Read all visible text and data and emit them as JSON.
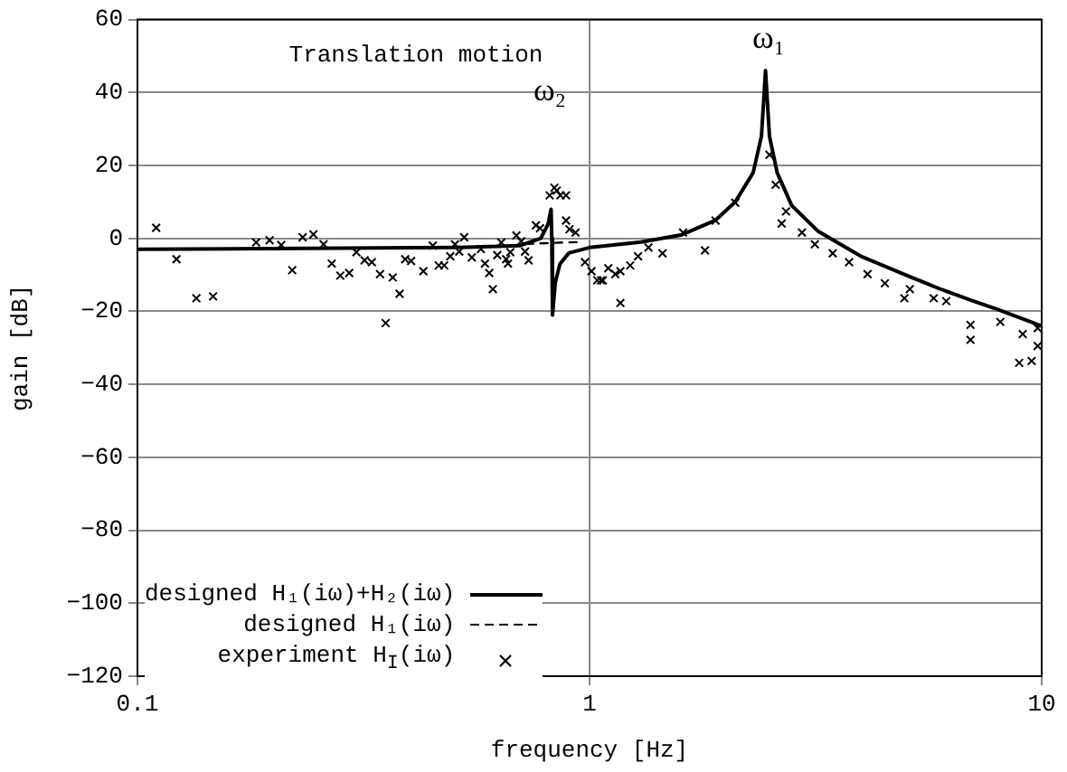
{
  "chart_data": {
    "type": "line",
    "xlabel": "frequency [Hz]",
    "ylabel": "gain [dB]",
    "log": "x",
    "xlim": [
      0.1,
      10
    ],
    "xticks": [
      0.1,
      1,
      10
    ],
    "ylim": [
      -120,
      60
    ],
    "yticks": [
      -120,
      -100,
      -80,
      -60,
      -40,
      -20,
      0,
      20,
      40,
      60
    ],
    "grid": true,
    "legend": "bottom left",
    "annotations": [
      "Translation motion",
      "ω₁",
      "ω₂"
    ],
    "series": [
      {
        "name": "designed H₁(iω)+H₂(iω)",
        "line_style": "solid",
        "marker": "none",
        "color": "#000000",
        "x": [
          0.1,
          0.5,
          0.7,
          0.78,
          0.81,
          0.822,
          0.825,
          0.828,
          0.84,
          0.86,
          0.9,
          1.0,
          1.3,
          1.6,
          1.9,
          2.1,
          2.3,
          2.4,
          2.45,
          2.5,
          2.6,
          2.8,
          3.2,
          4,
          5,
          6,
          7,
          8,
          10
        ],
        "values": [
          -3,
          -2.5,
          -2,
          0,
          4,
          8,
          0,
          -21,
          -12,
          -7,
          -4,
          -2.5,
          -1,
          1,
          5,
          10,
          18,
          28,
          46,
          28,
          18,
          9,
          2,
          -5,
          -10,
          -14,
          -17,
          -19.5,
          -24
        ]
      },
      {
        "name": "designed H₁(iω)",
        "line_style": "dashed",
        "marker": "none",
        "color": "#000000",
        "x": [
          0.72,
          0.8,
          0.88,
          0.96
        ],
        "values": [
          -1.5,
          -1.3,
          -1.1,
          -1
        ]
      },
      {
        "name": "experiment H$_{I}$(iω)",
        "type": "scatter",
        "marker": "cross",
        "color": "#000000",
        "x": [
          0.11,
          0.122,
          0.135,
          0.147,
          0.183,
          0.196,
          0.208,
          0.22,
          0.232,
          0.245,
          0.258,
          0.269,
          0.281,
          0.294,
          0.305,
          0.318,
          0.33,
          0.344,
          0.354,
          0.367,
          0.38,
          0.391,
          0.403,
          0.429,
          0.45,
          0.464,
          0.477,
          0.492,
          0.504,
          0.515,
          0.528,
          0.549,
          0.575,
          0.587,
          0.6,
          0.611,
          0.625,
          0.638,
          0.654,
          0.66,
          0.668,
          0.689,
          0.706,
          0.72,
          0.733,
          0.761,
          0.777,
          0.816,
          0.836,
          0.846,
          0.862,
          0.887,
          0.887,
          0.903,
          0.931,
          0.977,
          1.01,
          1.04,
          1.06,
          1.07,
          1.1,
          1.14,
          1.17,
          1.17,
          1.23,
          1.28,
          1.35,
          1.45,
          1.61,
          1.8,
          1.9,
          2.1,
          2.5,
          2.58,
          2.66,
          2.72,
          2.95,
          3.15,
          3.45,
          3.75,
          4.12,
          4.5,
          4.97,
          5.11,
          5.77,
          6.15,
          6.96,
          6.96,
          8.1,
          8.92,
          9.08,
          9.5,
          9.8,
          9.8
        ],
        "values": [
          2.9,
          -5.7,
          -16.4,
          -15.9,
          -1.1,
          -0.5,
          -1.8,
          -8.7,
          0.3,
          1.1,
          -1.6,
          -6.9,
          -10.2,
          -9.5,
          -3.8,
          -6,
          -6.5,
          -9.8,
          -23.2,
          -10.7,
          -15.2,
          -5.7,
          -6.2,
          -9,
          -2,
          -7.4,
          -7.4,
          -4.9,
          -1.6,
          -3.6,
          0.3,
          -5.2,
          -2.9,
          -6.9,
          -9.5,
          -13.9,
          -4.6,
          -1.1,
          -5.7,
          -6.9,
          -3.8,
          0.8,
          -0.8,
          -3.6,
          -6,
          3.6,
          2.8,
          11.8,
          13.9,
          13.1,
          11.8,
          11.8,
          4.9,
          2.5,
          1.6,
          -6.5,
          -9,
          -11.5,
          -11.5,
          -11.5,
          -8.2,
          -9.8,
          -9,
          -17.7,
          -7.4,
          -4.9,
          -2.5,
          -4.1,
          1.6,
          -3.3,
          4.9,
          9.8,
          22.9,
          14.7,
          4.1,
          7.4,
          1.6,
          -1.6,
          -4.1,
          -6.5,
          -9.8,
          -12.3,
          -16.4,
          -13.9,
          -16.4,
          -17.2,
          -23.7,
          -27.8,
          -22.9,
          -34.1,
          -26.2,
          -33.6,
          -24.6,
          -29.5
        ]
      }
    ]
  }
}
